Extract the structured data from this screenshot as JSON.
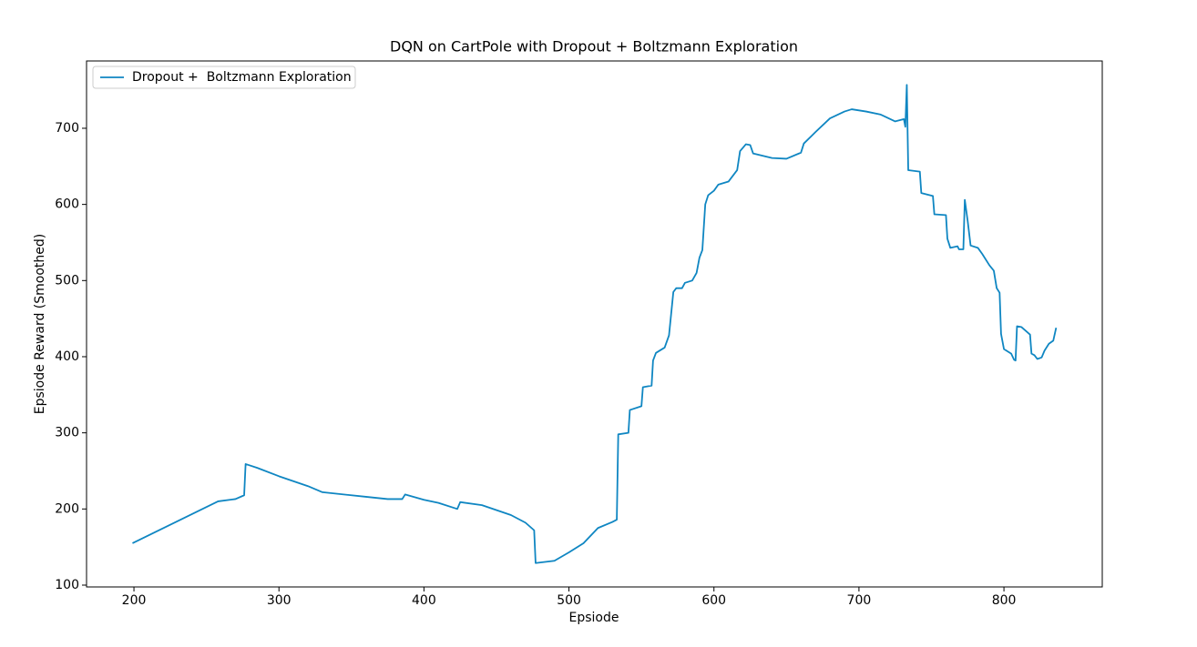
{
  "chart_data": {
    "type": "line",
    "title": "DQN on CartPole with Dropout + Boltzmann Exploration",
    "xlabel": "Epsiode",
    "ylabel": "Epsiode Reward (Smoothed)",
    "x": [
      199,
      258,
      270,
      276,
      277,
      285,
      300,
      320,
      330,
      360,
      375,
      385,
      387,
      400,
      410,
      423,
      425,
      440,
      460,
      470,
      476,
      477,
      490,
      500,
      510,
      520,
      530,
      533,
      534,
      541,
      542,
      550,
      551,
      557,
      558,
      560,
      566,
      569,
      572,
      574,
      578,
      580,
      585,
      588,
      590,
      592,
      594,
      596,
      600,
      603,
      610,
      616,
      618,
      622,
      625,
      627,
      640,
      650,
      660,
      662,
      670,
      680,
      690,
      695,
      705,
      715,
      725,
      731,
      732,
      733,
      734,
      742,
      743,
      751,
      752,
      760,
      761,
      763,
      768,
      769,
      772,
      773,
      775,
      777,
      782,
      785,
      790,
      793,
      795,
      797,
      798,
      800,
      805,
      807,
      808,
      809,
      812,
      818,
      819,
      821,
      823,
      826,
      828,
      831,
      834,
      836
    ],
    "series": [
      {
        "name": "Dropout +  Boltzmann Exploration",
        "color": "#0f86c2",
        "values": [
          155,
          210,
          213,
          218,
          259,
          254,
          243,
          230,
          222,
          216,
          213,
          213,
          219,
          212,
          208,
          200,
          209,
          205,
          192,
          182,
          172,
          129,
          132,
          143,
          155,
          175,
          183,
          186,
          298,
          300,
          330,
          335,
          360,
          362,
          395,
          405,
          412,
          428,
          485,
          490,
          490,
          497,
          500,
          510,
          530,
          540,
          600,
          612,
          618,
          626,
          630,
          645,
          670,
          679,
          678,
          667,
          661,
          660,
          668,
          680,
          695,
          713,
          722,
          725,
          722,
          718,
          709,
          712,
          702,
          757,
          645,
          643,
          615,
          611,
          587,
          586,
          555,
          543,
          545,
          541,
          541,
          606,
          578,
          546,
          543,
          535,
          520,
          513,
          490,
          484,
          430,
          410,
          404,
          396,
          395,
          440,
          439,
          429,
          404,
          402,
          397,
          399,
          408,
          417,
          421,
          438
        ]
      }
    ],
    "xlim": [
      167.3,
      867.8
    ],
    "xticks": [
      200,
      300,
      400,
      500,
      600,
      700,
      800
    ],
    "ylim": [
      97.6,
      788.4
    ],
    "yticks": [
      100,
      200,
      300,
      400,
      500,
      600,
      700
    ],
    "legend": "upper left"
  }
}
